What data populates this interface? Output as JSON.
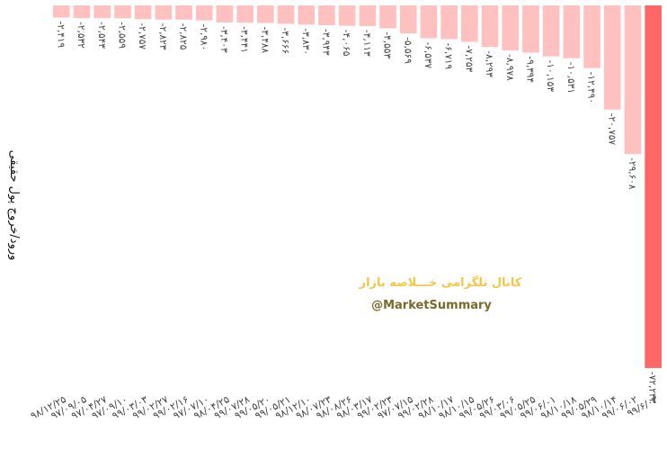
{
  "chart_data": {
    "type": "bar",
    "y_label": "ورود/خروج پول حقیقی",
    "watermark": "کانال تلگرامی خـــلاصه بازار",
    "watermark_handle": "@MarketSummary",
    "categories": [
      "۹۸/۱۲/۲۵",
      "۹۷/۰۹/۰۵",
      "۹۷/۰۴/۲۷",
      "۹۷/۰۹/۱۰",
      "۹۹/۰۳/۰۳",
      "۹۹/۰۲/۲۷",
      "۹۹/۰۲/۱۶",
      "۹۷/۰۷/۱۰",
      "۹۸/۰۴/۲۵",
      "۹۹/۰۷/۲۸",
      "۹۹/۰۵/۲۰",
      "۹۹/۰۵/۲۱",
      "۹۸/۱۲/۱۰",
      "۹۸/۰۷/۲۳",
      "۹۸/۰۸/۲۶",
      "۹۸/۰۳/۱۷",
      "۹۹/۰۲/۲۳",
      "۹۷/۰۷/۱۵",
      "۹۹/۰۲/۲۸",
      "۹۸/۱۰/۱۷",
      "۹۸/۱۰/۱۵",
      "۹۹/۰۵/۲۶",
      "۹۹/۰۳/۰۶",
      "۹۹/۰۵/۲۵",
      "۹۹/۰۶/۰۱",
      "۹۸/۱۰/۱۸",
      "۹۹/۰۵/۲۹",
      "۹۸/۱۰/۱۴",
      "۹۹/۰۶/۰۲",
      "۹۹/۶/۰۳"
    ],
    "values": [
      -2419,
      -2532,
      -2543,
      -2559,
      -2757,
      -2823,
      -2825,
      -2980,
      -3403,
      -3441,
      -3488,
      -3666,
      -3830,
      -3943,
      -4065,
      -4113,
      -4553,
      -5569,
      -6537,
      -6719,
      -7253,
      -8293,
      -8978,
      -9394,
      -10153,
      -10531,
      -12490,
      -20757,
      -29608,
      -72233
    ],
    "value_labels": [
      "-۲,۴۱۹",
      "-۲,۵۳۲",
      "-۲,۵۴۳",
      "-۲,۵۵۹",
      "-۲,۷۵۷",
      "-۲,۸۲۳",
      "-۲,۸۲۵",
      "-۲,۹۸۰",
      "-۳,۴۰۳",
      "-۳,۴۴۱",
      "-۳,۴۸۸",
      "-۳,۶۶۶",
      "-۳,۸۳۰",
      "-۳,۹۴۳",
      "-۴,۰۶۵",
      "-۴,۱۱۳",
      "-۴,۵۵۳",
      "-۵,۵۶۹",
      "-۶,۵۳۷",
      "-۶,۷۱۹",
      "-۷,۲۵۳",
      "-۸,۲۹۳",
      "-۸,۹۷۸",
      "-۹,۳۹۴",
      "-۱۰,۱۵۳",
      "-۱۰,۵۳۱",
      "-۱۲,۴۹۰",
      "-۲۰,۷۵۷",
      "-۲۹,۶۰۸",
      "-۷۲,۲۳۳"
    ],
    "colors": [
      "#ffc0c0",
      "#ffc0c0",
      "#ffc0c0",
      "#ffc0c0",
      "#ffc0c0",
      "#ffc0c0",
      "#ffc0c0",
      "#ffc0c0",
      "#ffc0c0",
      "#ffc0c0",
      "#ffc0c0",
      "#ffc0c0",
      "#ffc0c0",
      "#ffc0c0",
      "#ffc0c0",
      "#ffc0c0",
      "#ffc0c0",
      "#ffc0c0",
      "#ffc0c0",
      "#ffc0c0",
      "#ffc0c0",
      "#ffc0c0",
      "#ffc0c0",
      "#ffc0c0",
      "#ffc0c0",
      "#ffc0c0",
      "#ffc0c0",
      "#ffc0c0",
      "#ffc0c0",
      "#ff6666"
    ],
    "ylim": [
      -73500,
      0
    ]
  }
}
